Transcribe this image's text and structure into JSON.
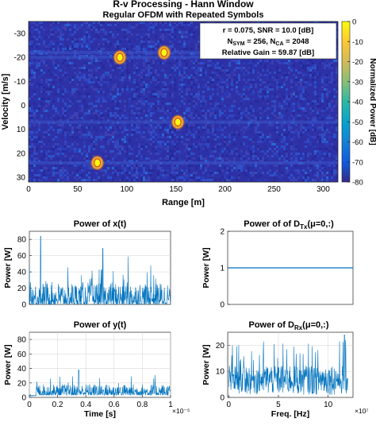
{
  "chart_data": [
    {
      "id": "rv_map",
      "type": "heatmap",
      "title": "R-v Processing - Hann Window",
      "subtitle": "Regular OFDM with Repeated Symbols",
      "xlabel": "Range [m]",
      "ylabel": "Velocity [m/s]",
      "xlim": [
        0,
        315
      ],
      "ylim": [
        -35,
        32
      ],
      "y_reversed": true,
      "xticks": [
        0,
        50,
        100,
        150,
        200,
        250,
        300
      ],
      "yticks": [
        -30,
        -20,
        -10,
        0,
        10,
        20,
        30
      ],
      "background_color": "#2e31a6",
      "targets": [
        {
          "range": 93,
          "velocity": -20
        },
        {
          "range": 138,
          "velocity": -22
        },
        {
          "range": 152,
          "velocity": 7
        },
        {
          "range": 70,
          "velocity": 24
        }
      ],
      "annotation": {
        "line1": "r = 0.075, SNR = 10.0 [dB]",
        "line2_n_sym": "256",
        "line2_n_ca": "2048",
        "line3": "Relative Gain = 59.87 [dB]"
      },
      "colorbar": {
        "label": "Normalized Power [dB]",
        "ticks": [
          0,
          -10,
          -20,
          -30,
          -40,
          -50,
          -60,
          -70,
          -80
        ],
        "range": [
          -80,
          0
        ],
        "colors": [
          "#352a87",
          "#0f5cdd",
          "#1481d6",
          "#06a4ca",
          "#2eb7a4",
          "#87bf77",
          "#d1bb59",
          "#fec832",
          "#f9fb0e"
        ]
      }
    },
    {
      "id": "power_x",
      "type": "line",
      "title": "Power of x(t)",
      "ylabel": "Power [W]",
      "ylim": [
        0,
        90
      ],
      "yticks": [
        0,
        20,
        40,
        60,
        80
      ],
      "series_color": "#0072bd",
      "series": [
        {
          "baseline": 8,
          "max": 84,
          "peaks": [
            0.08,
            84,
            0.52,
            69,
            0.7,
            59,
            0.86,
            48
          ]
        }
      ]
    },
    {
      "id": "power_dtx",
      "type": "line",
      "title_prefix": "Power of of D",
      "title_sub": "Tx",
      "title_suffix": "(μ=0,:)",
      "ylabel": "Power [W]",
      "ylim": [
        0,
        2
      ],
      "yticks": [
        0,
        1,
        2
      ],
      "series_color": "#0072bd",
      "series": [
        {
          "value": 1.0
        }
      ]
    },
    {
      "id": "power_y",
      "type": "line",
      "title": "Power of y(t)",
      "ylabel": "Power [W]",
      "xlabel": "Time [s]",
      "xlim": [
        0,
        1
      ],
      "xticks": [
        0,
        0.2,
        0.4,
        0.6,
        0.8,
        1
      ],
      "xtick_labels": [
        "0",
        "0.2",
        "0.4",
        "0.6",
        "0.8",
        "1"
      ],
      "x_exponent": "×10⁻⁵",
      "ylim": [
        0,
        90
      ],
      "yticks": [
        0,
        20,
        40,
        60,
        80
      ],
      "series_color": "#0072bd",
      "series": [
        {
          "baseline": 2,
          "start": 0.05,
          "typical": 10,
          "max": 38
        }
      ]
    },
    {
      "id": "power_drx",
      "type": "line",
      "title_prefix": "Power of D",
      "title_sub": "Rx",
      "title_suffix": "(μ=0,:)",
      "ylabel": "Power [W]",
      "xlabel": "Freq. [Hz]",
      "xlim": [
        -0.1,
        12.5
      ],
      "xticks": [
        0,
        5,
        10
      ],
      "xtick_labels": [
        "0",
        "5",
        "10"
      ],
      "x_exponent": "×10⁷",
      "ylim": [
        0,
        25
      ],
      "yticks": [
        0,
        10,
        20
      ],
      "series_color": "#0072bd",
      "series": [
        {
          "end": 12,
          "typical": 8,
          "max": 24
        }
      ]
    }
  ]
}
